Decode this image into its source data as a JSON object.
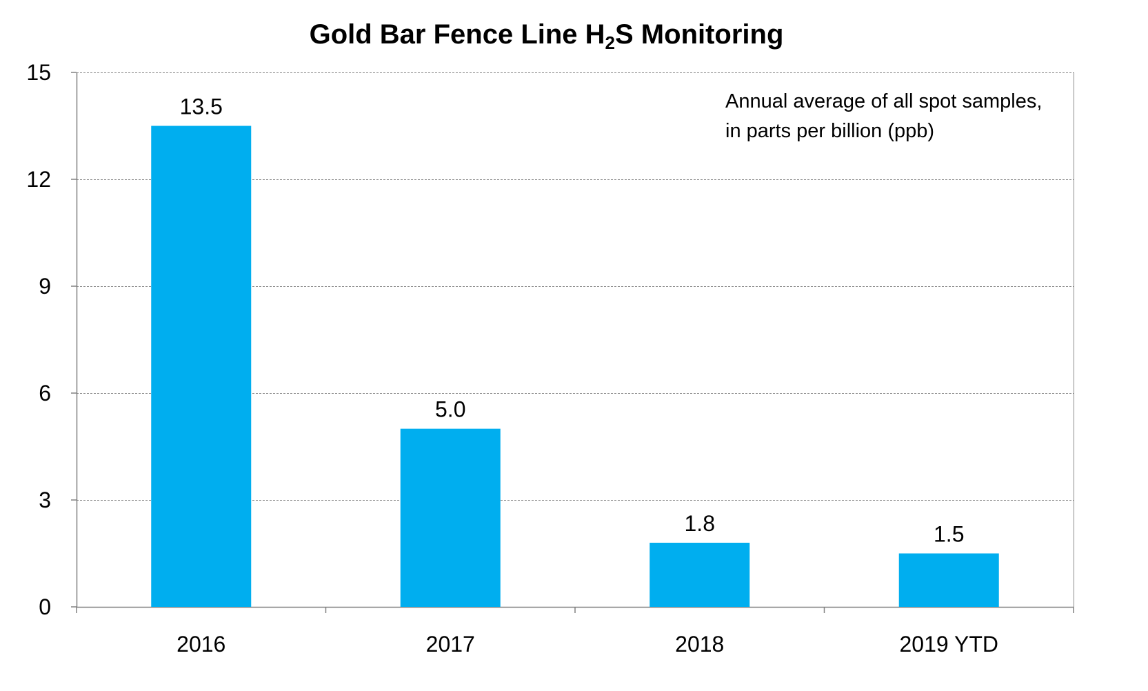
{
  "chart_data": {
    "type": "bar",
    "title_main": "Gold Bar Fence Line H",
    "title_sub": "2",
    "title_end": "S Monitoring",
    "annotation_line1": "Annual average of all spot samples,",
    "annotation_line2": "in parts per billion (ppb)",
    "categories": [
      "2016",
      "2017",
      "2018",
      "2019 YTD"
    ],
    "values": [
      13.5,
      5.0,
      1.8,
      1.5
    ],
    "value_labels": [
      "13.5",
      "5.0",
      "1.8",
      "1.5"
    ],
    "ylim": [
      0,
      15
    ],
    "yticks": [
      0,
      3,
      6,
      9,
      12,
      15
    ],
    "grid": true,
    "bar_color": "#00AEEF"
  }
}
